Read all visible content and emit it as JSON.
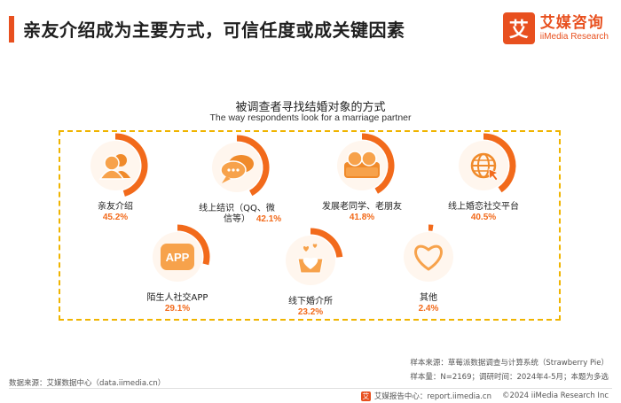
{
  "header": {
    "title": "亲友介绍成为主要方式，可信任度或成关键因素",
    "logo_mark": "艾",
    "logo_cn": "艾媒咨询",
    "logo_en": "iiMedia Research"
  },
  "chart_data": {
    "type": "radial-progress",
    "title": "被调查者寻找结婚对象的方式",
    "subtitle": "The way respondents look for a marriage partner",
    "max": 100,
    "items": [
      {
        "label": "亲友介绍",
        "value": 45.2,
        "value_label": "45.2%",
        "icon": "people-icon"
      },
      {
        "label": "线上结识（QQ、微信等）",
        "label_lines": [
          "线上结识（QQ、微",
          "信等）"
        ],
        "value": 42.1,
        "value_label": "42.1%",
        "icon": "chat-bubbles-icon"
      },
      {
        "label": "发展老同学、老朋友",
        "value": 41.8,
        "value_label": "41.8%",
        "icon": "friends-icon"
      },
      {
        "label": "线上婚恋社交平台",
        "value": 40.5,
        "value_label": "40.5%",
        "icon": "globe-cursor-icon"
      },
      {
        "label": "陌生人社交APP",
        "value": 29.1,
        "value_label": "29.1%",
        "icon": "app-icon",
        "icon_text": "APP"
      },
      {
        "label": "线下婚介所",
        "value": 23.2,
        "value_label": "23.2%",
        "icon": "hearts-gift-icon"
      },
      {
        "label": "其他",
        "value": 2.4,
        "value_label": "2.4%",
        "icon": "heart-outline-icon"
      }
    ],
    "colors": {
      "ring": "#f26a1b",
      "icon_fill": "#f7a24b",
      "icon_dark": "#f08a2a",
      "value_text": "#f26a1b",
      "box_border": "#f0b400"
    }
  },
  "footer": {
    "source": "数据来源：艾媒数据中心（data.iimedia.cn）",
    "sample_source": "样本来源：草莓派数据调查与计算系统（Strawberry Pie）",
    "sample_size": "样本量：N=2169；调研时间：2024年4-5月；本题为多选",
    "report_center": "艾媒报告中心：report.iimedia.cn",
    "copyright": "©2024  iiMedia Research Inc"
  }
}
